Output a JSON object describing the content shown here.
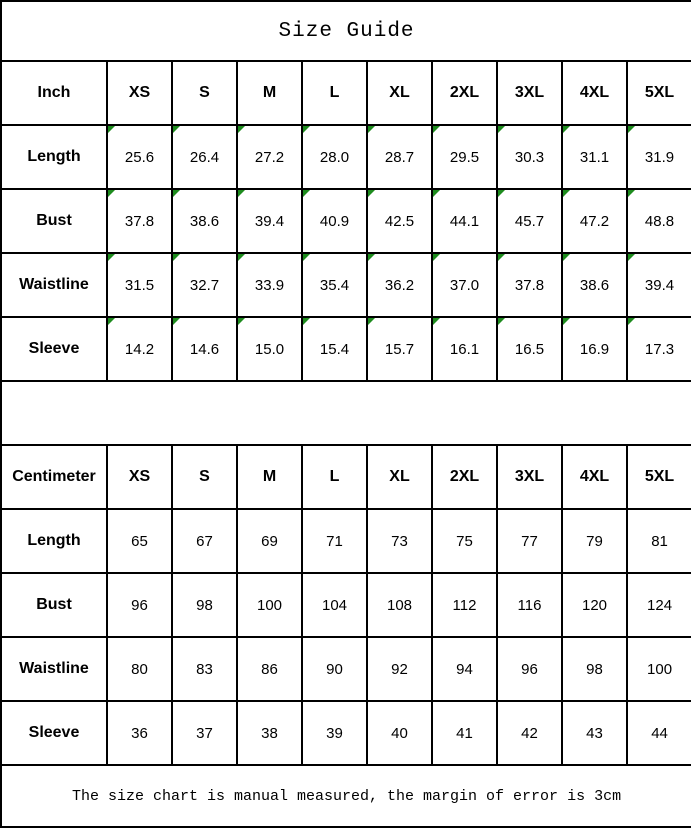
{
  "title": "Size Guide",
  "footer_note": "The size chart is manual measured, the margin of error is 3cm",
  "colors": {
    "background": "#ffffff",
    "border": "#000000",
    "text": "#000000",
    "flag_green": "#1e8c1e"
  },
  "sizes": [
    "XS",
    "S",
    "M",
    "L",
    "XL",
    "2XL",
    "3XL",
    "4XL",
    "5XL"
  ],
  "tables": [
    {
      "unit_label": "Inch",
      "flagged_cells": true,
      "rows": [
        {
          "label": "Length",
          "values": [
            "25.6",
            "26.4",
            "27.2",
            "28.0",
            "28.7",
            "29.5",
            "30.3",
            "31.1",
            "31.9"
          ]
        },
        {
          "label": "Bust",
          "values": [
            "37.8",
            "38.6",
            "39.4",
            "40.9",
            "42.5",
            "44.1",
            "45.7",
            "47.2",
            "48.8"
          ]
        },
        {
          "label": "Waistline",
          "values": [
            "31.5",
            "32.7",
            "33.9",
            "35.4",
            "36.2",
            "37.0",
            "37.8",
            "38.6",
            "39.4"
          ]
        },
        {
          "label": "Sleeve",
          "values": [
            "14.2",
            "14.6",
            "15.0",
            "15.4",
            "15.7",
            "16.1",
            "16.5",
            "16.9",
            "17.3"
          ]
        }
      ]
    },
    {
      "unit_label": "Centimeter",
      "flagged_cells": false,
      "rows": [
        {
          "label": "Length",
          "values": [
            "65",
            "67",
            "69",
            "71",
            "73",
            "75",
            "77",
            "79",
            "81"
          ]
        },
        {
          "label": "Bust",
          "values": [
            "96",
            "98",
            "100",
            "104",
            "108",
            "112",
            "116",
            "120",
            "124"
          ]
        },
        {
          "label": "Waistline",
          "values": [
            "80",
            "83",
            "86",
            "90",
            "92",
            "94",
            "96",
            "98",
            "100"
          ]
        },
        {
          "label": "Sleeve",
          "values": [
            "36",
            "37",
            "38",
            "39",
            "40",
            "41",
            "42",
            "43",
            "44"
          ]
        }
      ]
    }
  ],
  "chart_data": [
    {
      "type": "table",
      "title": "Size Guide",
      "unit": "Inch",
      "columns": [
        "Inch",
        "XS",
        "S",
        "M",
        "L",
        "XL",
        "2XL",
        "3XL",
        "4XL",
        "5XL"
      ],
      "rows": [
        [
          "Length",
          25.6,
          26.4,
          27.2,
          28.0,
          28.7,
          29.5,
          30.3,
          31.1,
          31.9
        ],
        [
          "Bust",
          37.8,
          38.6,
          39.4,
          40.9,
          42.5,
          44.1,
          45.7,
          47.2,
          48.8
        ],
        [
          "Waistline",
          31.5,
          32.7,
          33.9,
          35.4,
          36.2,
          37.0,
          37.8,
          38.6,
          39.4
        ],
        [
          "Sleeve",
          14.2,
          14.6,
          15.0,
          15.4,
          15.7,
          16.1,
          16.5,
          16.9,
          17.3
        ]
      ]
    },
    {
      "type": "table",
      "title": "Size Guide",
      "unit": "Centimeter",
      "columns": [
        "Centimeter",
        "XS",
        "S",
        "M",
        "L",
        "XL",
        "2XL",
        "3XL",
        "4XL",
        "5XL"
      ],
      "rows": [
        [
          "Length",
          65,
          67,
          69,
          71,
          73,
          75,
          77,
          79,
          81
        ],
        [
          "Bust",
          96,
          98,
          100,
          104,
          108,
          112,
          116,
          120,
          124
        ],
        [
          "Waistline",
          80,
          83,
          86,
          90,
          92,
          94,
          96,
          98,
          100
        ],
        [
          "Sleeve",
          36,
          37,
          38,
          39,
          40,
          41,
          42,
          43,
          44
        ]
      ]
    }
  ],
  "notes": "Green corner flags appear on all value cells of the Inch table only"
}
